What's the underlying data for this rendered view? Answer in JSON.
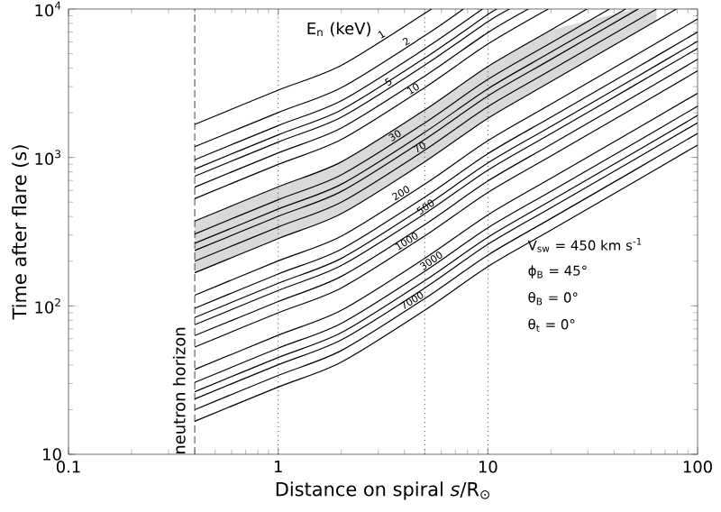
{
  "chart_data": {
    "type": "line",
    "xlabel": "Distance on spiral *s*/R$_{⊙}$",
    "ylabel": "Time after flare (s)",
    "log": "xy",
    "grid": false,
    "legend": false,
    "marker": "none",
    "line_style": "solid",
    "xlim": [
      0.1,
      100
    ],
    "ylim": [
      10,
      10000
    ],
    "xticks": [
      0.1,
      1,
      10,
      100
    ],
    "yticks": [
      10,
      {
        "value": 100,
        "label": "10$^{2}$"
      },
      {
        "value": 1000,
        "label": "10$^{3}$"
      },
      {
        "value": 10000,
        "label": "10$^{4}$"
      }
    ],
    "annotations": [
      "E$_{n}$ (keV)",
      "V$_{sw}$ = 450 km s$^{-1}$",
      "ϕ$_{B}$ = 45°",
      "θ$_{B}$ = 0°",
      "θ$_{t}$ = 0°"
    ],
    "ref_lines": [
      {
        "axis": "x",
        "value": 0.4,
        "label": "neutron horizon",
        "line_style": "dashed"
      },
      {
        "axis": "x",
        "value": 1,
        "line_style": "dotted"
      },
      {
        "axis": "x",
        "value": 5,
        "line_style": "dotted"
      },
      {
        "axis": "x",
        "value": 10,
        "line_style": "dotted"
      }
    ],
    "series": [
      {
        "name": "1",
        "color": "#000000",
        "x": [
          0.4,
          1,
          2,
          5,
          5.36
        ],
        "values": [
          1670,
          2839,
          4175,
          9352,
          10000
        ]
      },
      {
        "name": "2",
        "color": "#000000",
        "x": [
          0.4,
          1,
          2,
          5,
          7.64
        ],
        "values": [
          1181,
          2008,
          2953,
          6614,
          10000
        ]
      },
      {
        "color": "#000000",
        "x": [
          0.4,
          1,
          2,
          5,
          9.42
        ],
        "values": [
          964,
          1639,
          2410,
          5398,
          10000
        ]
      },
      {
        "color": "#000000",
        "x": [
          0.4,
          1,
          2,
          5,
          10,
          11.1
        ],
        "values": [
          835,
          1420,
          2088,
          4676,
          9185,
          10000
        ]
      },
      {
        "name": "5",
        "color": "#000000",
        "x": [
          0.4,
          1,
          2,
          5,
          10,
          12.7
        ],
        "values": [
          747,
          1270,
          1868,
          4183,
          8217,
          10000
        ]
      },
      {
        "color": "#000000",
        "x": [
          0.4,
          1,
          2,
          5,
          10,
          15.6
        ],
        "values": [
          631,
          1073,
          1578,
          3534,
          6941,
          10000
        ]
      },
      {
        "name": "10",
        "color": "#000000",
        "x": [
          0.4,
          1,
          2,
          5,
          10,
          19.4
        ],
        "values": [
          528,
          898,
          1320,
          2957,
          5808,
          10000
        ]
      },
      {
        "color": "#000000",
        "x": [
          0.4,
          1,
          2,
          5,
          10,
          20,
          29.7
        ],
        "values": [
          373,
          634,
          933,
          2089,
          4103,
          7236,
          10000
        ]
      },
      {
        "name": "30",
        "color": "#000000",
        "x": [
          0.4,
          1,
          2,
          5,
          10,
          20,
          38.0
        ],
        "values": [
          305,
          519,
          763,
          1708,
          3355,
          5917,
          10000
        ]
      },
      {
        "color": "#000000",
        "x": [
          0.4,
          1,
          2,
          5,
          10,
          20,
          45.4
        ],
        "values": [
          264,
          449,
          660,
          1478,
          2904,
          5122,
          10000
        ]
      },
      {
        "color": "#000000",
        "x": [
          0.4,
          1,
          2,
          5,
          10,
          20,
          50,
          52.0
        ],
        "values": [
          236,
          401,
          590,
          1322,
          2596,
          4578,
          9676,
          10000
        ]
      },
      {
        "name": "70",
        "color": "#000000",
        "x": [
          0.4,
          1,
          2,
          5,
          10,
          20,
          50,
          63.7
        ],
        "values": [
          200,
          340,
          500,
          1120,
          2200,
          3880,
          8200,
          10000
        ],
        "lower": [
          167,
          284,
          418,
          935,
          1837,
          3240,
          6847,
          8360
        ],
        "upper": [
          373,
          634,
          933,
          2089,
          4103,
          7236,
          10000,
          10000
        ]
      },
      {
        "color": "#000000",
        "x": [
          0.4,
          1,
          2,
          5,
          10,
          20,
          50,
          79.2
        ],
        "values": [
          167,
          284,
          418,
          935,
          1837,
          3240,
          6847,
          10000
        ]
      },
      {
        "name": "200",
        "color": "#000000",
        "x": [
          0.4,
          1,
          2,
          5,
          10,
          20,
          50,
          100
        ],
        "values": [
          118,
          201,
          295,
          661,
          1298,
          2289,
          4838,
          8567
        ]
      },
      {
        "color": "#000000",
        "x": [
          0.4,
          1,
          2,
          5,
          10,
          20,
          50,
          100
        ],
        "values": [
          96.4,
          164,
          241,
          540,
          1060,
          1870,
          3952,
          6999
        ]
      },
      {
        "color": "#000000",
        "x": [
          0.4,
          1,
          2,
          5,
          10,
          20,
          50,
          100
        ],
        "values": [
          83.5,
          142,
          209,
          468,
          919,
          1620,
          3424,
          6062
        ]
      },
      {
        "name": "500",
        "color": "#000000",
        "x": [
          0.4,
          1,
          2,
          5,
          10,
          20,
          50,
          100
        ],
        "values": [
          74.7,
          127,
          187,
          418,
          822,
          1449,
          3063,
          5423
        ]
      },
      {
        "color": "#000000",
        "x": [
          0.4,
          1,
          2,
          5,
          10,
          20,
          50,
          100
        ],
        "values": [
          63.1,
          107,
          158,
          353,
          694,
          1224,
          2587,
          4581
        ]
      },
      {
        "name": "1000",
        "color": "#000000",
        "x": [
          0.4,
          1,
          2,
          5,
          10,
          20,
          50,
          100
        ],
        "values": [
          52.8,
          89.8,
          132,
          296,
          581,
          1024,
          2165,
          3833
        ]
      },
      {
        "color": "#000000",
        "x": [
          0.4,
          1,
          2,
          5,
          10,
          20,
          50,
          100
        ],
        "values": [
          37.3,
          63.4,
          93.3,
          209,
          410,
          724,
          1529,
          2708
        ]
      },
      {
        "name": "3000",
        "color": "#000000",
        "x": [
          0.4,
          1,
          2,
          5,
          10,
          20,
          50,
          100
        ],
        "values": [
          30.5,
          51.9,
          76.3,
          171,
          336,
          592,
          1251,
          2214
        ]
      },
      {
        "color": "#000000",
        "x": [
          0.4,
          1,
          2,
          5,
          10,
          20,
          50,
          100
        ],
        "values": [
          26.4,
          44.9,
          66.0,
          148,
          290,
          512,
          1082,
          1917
        ]
      },
      {
        "color": "#000000",
        "x": [
          0.4,
          1,
          2,
          5,
          10,
          20,
          50,
          100
        ],
        "values": [
          23.6,
          40.1,
          59.0,
          132,
          260,
          458,
          968,
          1713
        ]
      },
      {
        "name": "7000",
        "color": "#000000",
        "x": [
          0.4,
          1,
          2,
          5,
          10,
          20,
          50,
          100
        ],
        "values": [
          20.0,
          34.0,
          50.0,
          112,
          220,
          388,
          820,
          1452
        ]
      },
      {
        "color": "#000000",
        "x": [
          0.4,
          1,
          2,
          5,
          10,
          20,
          50,
          100
        ],
        "values": [
          16.7,
          28.4,
          41.8,
          93.5,
          184,
          324,
          685,
          1212
        ]
      }
    ]
  }
}
